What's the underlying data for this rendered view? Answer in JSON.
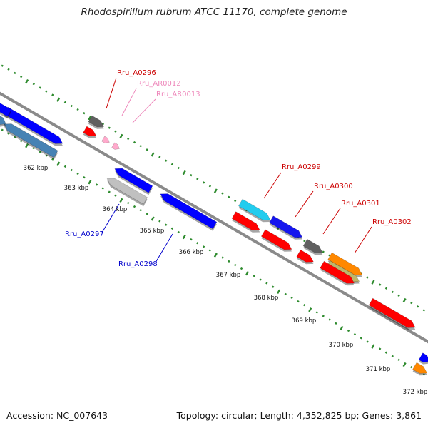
{
  "title": "Rhodospirillum rubrum ATCC 11170, complete genome",
  "footer": {
    "accession_label": "Accession:",
    "accession": "NC_007643",
    "topology_label": "Topology:",
    "topology": "circular",
    "length_label": "Length:",
    "length": "4,352,825 bp",
    "genes_label": "Genes:",
    "genes": "3,861",
    "accession_text": "Accession: NC_007643",
    "stats_text": "Topology: circular; Length: 4,352,825 bp; Genes: 3,861"
  },
  "ruler": {
    "unit": "kbp",
    "tick_labels": [
      "362 kbp",
      "363 kbp",
      "364 kbp",
      "365 kbp",
      "366 kbp",
      "367 kbp",
      "368 kbp",
      "369 kbp",
      "370 kbp",
      "371 kbp",
      "372 kbp"
    ]
  },
  "colors": {
    "backbone": "#8a8a8a",
    "tick": "#2e8b2e",
    "forward_label": "#cc0000",
    "rna_label": "#ee88bb",
    "reverse_label": "#0000cc"
  },
  "genes": [
    {
      "id": "g1",
      "strand": "forward",
      "color": "#0000ff",
      "label": ""
    },
    {
      "id": "g2",
      "strand": "forward",
      "color": "#606060",
      "label": "Rru_A0296"
    },
    {
      "id": "g3",
      "strand": "forward",
      "color": "#ff0000",
      "label": ""
    },
    {
      "id": "g4",
      "strand": "forward",
      "color": "#ffaacc",
      "label": "Rru_AR0012"
    },
    {
      "id": "g5",
      "strand": "forward",
      "color": "#ffaacc",
      "label": "Rru_AR0013"
    },
    {
      "id": "g6",
      "strand": "forward",
      "color": "#22ccee",
      "label": "Rru_A0299"
    },
    {
      "id": "g7",
      "strand": "forward",
      "color": "#1515ee",
      "label": ""
    },
    {
      "id": "g8",
      "strand": "forward",
      "color": "#606060",
      "label": "Rru_A0300"
    },
    {
      "id": "g9",
      "strand": "forward",
      "color": "#ff8800",
      "label": "Rru_A0302"
    },
    {
      "id": "g10",
      "strand": "forward",
      "color": "#ff0000",
      "label": ""
    },
    {
      "id": "g11",
      "strand": "forward",
      "color": "#ff0000",
      "label": ""
    },
    {
      "id": "g12",
      "strand": "forward",
      "color": "#ff0000",
      "label": ""
    },
    {
      "id": "g13",
      "strand": "forward",
      "color": "#bdb76b",
      "label": ""
    },
    {
      "id": "g14",
      "strand": "forward",
      "color": "#ff0000",
      "label": "Rru_A0301"
    },
    {
      "id": "g15",
      "strand": "forward",
      "color": "#ff0000",
      "label": ""
    },
    {
      "id": "g16",
      "strand": "forward",
      "color": "#0000ff",
      "label": ""
    },
    {
      "id": "g17",
      "strand": "forward",
      "color": "#ff8800",
      "label": ""
    },
    {
      "id": "g18",
      "strand": "reverse",
      "color": "#0000ff",
      "label": ""
    },
    {
      "id": "g19",
      "strand": "reverse",
      "color": "#4682b4",
      "label": ""
    },
    {
      "id": "g20",
      "strand": "reverse",
      "color": "#0000ff",
      "label": ""
    },
    {
      "id": "g21",
      "strand": "reverse",
      "color": "#c0c0c0",
      "label": "Rru_A0297"
    },
    {
      "id": "g22",
      "strand": "reverse",
      "color": "#0000ff",
      "label": "Rru_A0298"
    },
    {
      "id": "g23",
      "strand": "forward",
      "color": "#4682b4",
      "label": ""
    },
    {
      "id": "g24",
      "strand": "reverse",
      "color": "#22ccee",
      "label": ""
    }
  ]
}
